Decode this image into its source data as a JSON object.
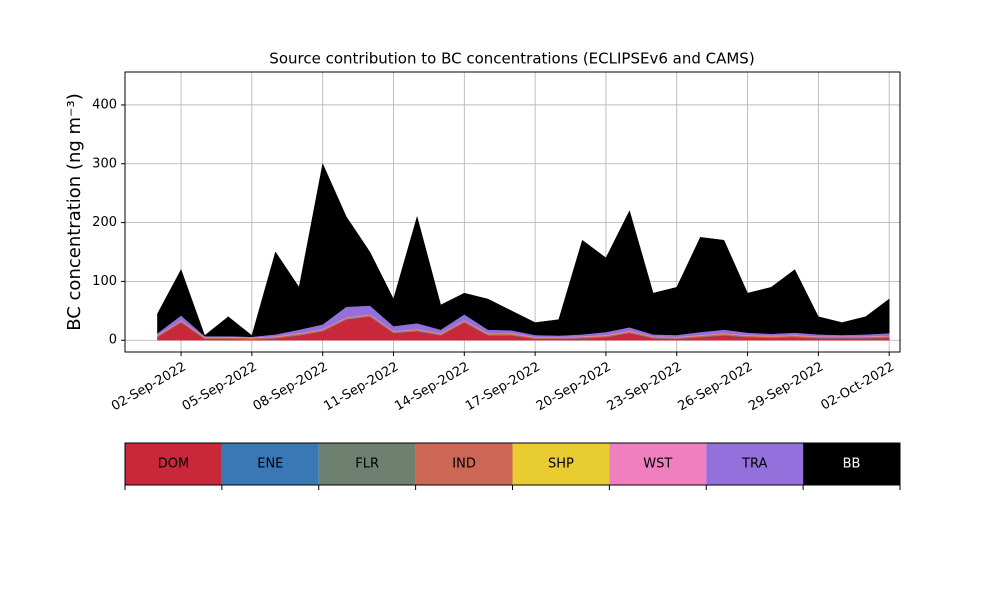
{
  "chart_data": {
    "type": "stacked_area",
    "title": "Source contribution to BC concentrations (ECLIPSEv6 and CAMS)",
    "ylabel": "BC concentration (ng m⁻³)",
    "x": [
      "2022-09-01",
      "2022-09-02",
      "2022-09-03",
      "2022-09-04",
      "2022-09-05",
      "2022-09-06",
      "2022-09-07",
      "2022-09-08",
      "2022-09-09",
      "2022-09-10",
      "2022-09-11",
      "2022-09-12",
      "2022-09-13",
      "2022-09-14",
      "2022-09-15",
      "2022-09-16",
      "2022-09-17",
      "2022-09-18",
      "2022-09-19",
      "2022-09-20",
      "2022-09-21",
      "2022-09-22",
      "2022-09-23",
      "2022-09-24",
      "2022-09-25",
      "2022-09-26",
      "2022-09-27",
      "2022-09-28",
      "2022-09-29",
      "2022-09-30",
      "2022-10-01",
      "2022-10-02"
    ],
    "series": [
      {
        "name": "DOM",
        "color": "#c8283a",
        "values": [
          5,
          30,
          2,
          2,
          1,
          3,
          8,
          15,
          35,
          40,
          12,
          15,
          8,
          30,
          8,
          8,
          2,
          2,
          3,
          5,
          12,
          3,
          2,
          5,
          8,
          5,
          4,
          5,
          3,
          3,
          3,
          4
        ]
      },
      {
        "name": "ENE",
        "color": "#3a78b5",
        "values": [
          0.5,
          0.5,
          0.5,
          0.5,
          0.5,
          0.5,
          0.5,
          0.5,
          0.5,
          0.5,
          0.5,
          0.5,
          0.5,
          0.5,
          0.5,
          0.5,
          0.5,
          0.5,
          0.5,
          0.5,
          0.5,
          0.5,
          0.5,
          0.5,
          0.5,
          0.5,
          0.5,
          0.5,
          0.5,
          0.5,
          0.5,
          0.5
        ]
      },
      {
        "name": "FLR",
        "color": "#6e8070",
        "values": [
          0.3,
          0.3,
          0.3,
          0.3,
          0.3,
          0.3,
          0.3,
          0.3,
          0.3,
          0.3,
          0.3,
          0.3,
          0.3,
          0.3,
          0.3,
          0.3,
          0.3,
          0.3,
          0.3,
          0.3,
          0.3,
          0.3,
          0.3,
          0.3,
          0.3,
          0.3,
          0.3,
          0.3,
          0.3,
          0.3,
          0.3,
          0.3
        ]
      },
      {
        "name": "IND",
        "color": "#cc6655",
        "values": [
          2,
          2,
          2,
          2,
          2,
          2,
          2,
          2,
          2,
          2,
          2,
          2,
          2,
          2,
          2,
          2,
          2,
          2,
          2,
          2,
          2,
          2,
          2,
          2,
          2,
          2,
          2,
          2,
          2,
          2,
          2,
          2
        ]
      },
      {
        "name": "SHP",
        "color": "#e8cc30",
        "values": [
          0.2,
          0.2,
          0.2,
          0.2,
          0.2,
          0.2,
          0.2,
          0.2,
          0.2,
          0.2,
          0.2,
          0.2,
          0.2,
          0.2,
          0.2,
          0.2,
          0.2,
          0.2,
          0.2,
          0.2,
          0.2,
          0.2,
          0.2,
          0.2,
          0.2,
          0.2,
          0.2,
          0.2,
          0.2,
          0.2,
          0.2,
          0.2
        ]
      },
      {
        "name": "WST",
        "color": "#f07fbf",
        "values": [
          1,
          1,
          1,
          1,
          1,
          1,
          1,
          1,
          1,
          1,
          1,
          1,
          1,
          1,
          1,
          1,
          1,
          1,
          1,
          1,
          1,
          1,
          1,
          1,
          1,
          1,
          1,
          1,
          1,
          1,
          1,
          1
        ]
      },
      {
        "name": "TRA",
        "color": "#9370db",
        "values": [
          3,
          8,
          1,
          1,
          1,
          3,
          6,
          8,
          18,
          15,
          8,
          10,
          6,
          10,
          6,
          5,
          3,
          2,
          3,
          5,
          6,
          3,
          3,
          5,
          6,
          4,
          3,
          4,
          3,
          2,
          3,
          4
        ]
      },
      {
        "name": "BB",
        "color": "#000000",
        "values": [
          33,
          78,
          1,
          33,
          2,
          140,
          72,
          273,
          153,
          91,
          46,
          181,
          42,
          36,
          52,
          33,
          21,
          27,
          160,
          126,
          198,
          70,
          81,
          161,
          152,
          67,
          79,
          107,
          30,
          21,
          30,
          58
        ]
      }
    ],
    "xlim": [
      "2022-08-30T15:00",
      "2022-10-02T11:00"
    ],
    "xticks": [
      {
        "value": "2022-09-02",
        "label": "02-Sep-2022"
      },
      {
        "value": "2022-09-05",
        "label": "05-Sep-2022"
      },
      {
        "value": "2022-09-08",
        "label": "08-Sep-2022"
      },
      {
        "value": "2022-09-11",
        "label": "11-Sep-2022"
      },
      {
        "value": "2022-09-14",
        "label": "14-Sep-2022"
      },
      {
        "value": "2022-09-17",
        "label": "17-Sep-2022"
      },
      {
        "value": "2022-09-20",
        "label": "20-Sep-2022"
      },
      {
        "value": "2022-09-23",
        "label": "23-Sep-2022"
      },
      {
        "value": "2022-09-26",
        "label": "26-Sep-2022"
      },
      {
        "value": "2022-09-29",
        "label": "29-Sep-2022"
      },
      {
        "value": "2022-10-02",
        "label": "02-Oct-2022"
      }
    ],
    "ylim": [
      -20,
      456
    ],
    "yticks": [
      0,
      100,
      200,
      300,
      400
    ],
    "grid": true
  }
}
